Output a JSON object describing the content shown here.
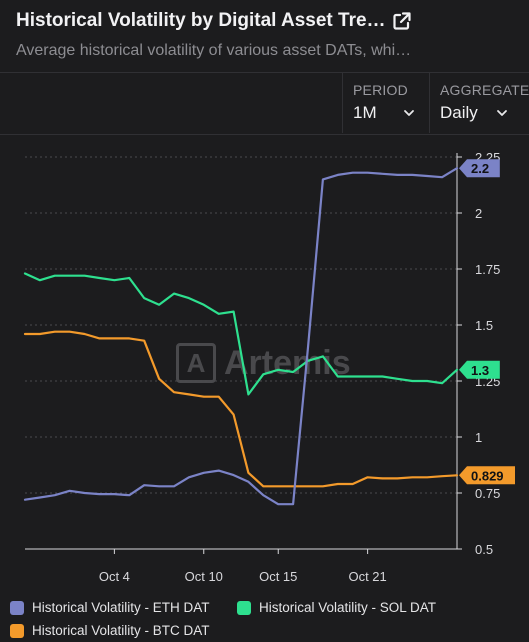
{
  "header": {
    "title": "Historical Volatility by Digital Asset Tre…",
    "subtitle": "Average historical volatility of various asset DATs, whi…",
    "external_link_icon": "external-link-icon"
  },
  "controls": {
    "period": {
      "label": "PERIOD",
      "value": "1M"
    },
    "aggregate": {
      "label": "AGGREGATE",
      "value": "Daily"
    }
  },
  "watermark": {
    "text": "Artemis",
    "logo_letter": "A"
  },
  "colors": {
    "eth": "#7b83c7",
    "sol": "#2ee08f",
    "btc": "#f39a2b",
    "background": "#1c1c1e",
    "grid": "#4a4a4e"
  },
  "chart_data": {
    "type": "line",
    "title": "",
    "xlabel": "",
    "ylabel": "",
    "ylim": [
      0.5,
      2.25
    ],
    "y_ticks": [
      "2.25",
      "2",
      "1.75",
      "1.5",
      "1.25",
      "1",
      "0.75",
      "0.5"
    ],
    "y_tick_values": [
      2.25,
      2,
      1.75,
      1.5,
      1.25,
      1,
      0.75,
      0.5
    ],
    "x_tick_labels": [
      "Oct 4",
      "Oct 10",
      "Oct 15",
      "Oct 21"
    ],
    "x_tick_values": [
      6,
      12,
      17,
      23
    ],
    "x_range": [
      0,
      29
    ],
    "grid": true,
    "legend_position": "bottom",
    "series": [
      {
        "name": "Historical Volatility - ETH DAT",
        "color_key": "eth",
        "end_label": "2.2",
        "x": [
          0,
          1,
          2,
          3,
          4,
          5,
          6,
          7,
          8,
          9,
          10,
          11,
          12,
          13,
          14,
          15,
          16,
          17,
          18,
          19,
          20,
          21,
          22,
          23,
          24,
          25,
          26,
          27,
          28,
          29
        ],
        "values": [
          0.72,
          0.73,
          0.74,
          0.76,
          0.75,
          0.745,
          0.745,
          0.74,
          0.785,
          0.78,
          0.78,
          0.82,
          0.84,
          0.85,
          0.83,
          0.8,
          0.74,
          0.7,
          0.7,
          1.4,
          2.15,
          2.17,
          2.18,
          2.18,
          2.175,
          2.17,
          2.17,
          2.165,
          2.16,
          2.2
        ]
      },
      {
        "name": "Historical Volatility - SOL DAT",
        "color_key": "sol",
        "end_label": "1.3",
        "x": [
          0,
          1,
          2,
          3,
          4,
          5,
          6,
          7,
          8,
          9,
          10,
          11,
          12,
          13,
          14,
          15,
          16,
          17,
          18,
          19,
          20,
          21,
          22,
          23,
          24,
          25,
          26,
          27,
          28,
          29
        ],
        "values": [
          1.73,
          1.7,
          1.72,
          1.72,
          1.72,
          1.71,
          1.7,
          1.71,
          1.62,
          1.59,
          1.64,
          1.62,
          1.59,
          1.55,
          1.56,
          1.19,
          1.28,
          1.3,
          1.29,
          1.34,
          1.36,
          1.27,
          1.27,
          1.27,
          1.27,
          1.26,
          1.25,
          1.25,
          1.24,
          1.3
        ]
      },
      {
        "name": "Historical Volatility - BTC DAT",
        "color_key": "btc",
        "end_label": "0.829",
        "x": [
          0,
          1,
          2,
          3,
          4,
          5,
          6,
          7,
          8,
          9,
          10,
          11,
          12,
          13,
          14,
          15,
          16,
          17,
          18,
          19,
          20,
          21,
          22,
          23,
          24,
          25,
          26,
          27,
          28,
          29
        ],
        "values": [
          1.46,
          1.46,
          1.47,
          1.47,
          1.46,
          1.44,
          1.44,
          1.44,
          1.43,
          1.26,
          1.2,
          1.19,
          1.18,
          1.18,
          1.1,
          0.84,
          0.78,
          0.78,
          0.78,
          0.78,
          0.78,
          0.79,
          0.79,
          0.82,
          0.815,
          0.815,
          0.82,
          0.82,
          0.825,
          0.829
        ]
      }
    ]
  }
}
